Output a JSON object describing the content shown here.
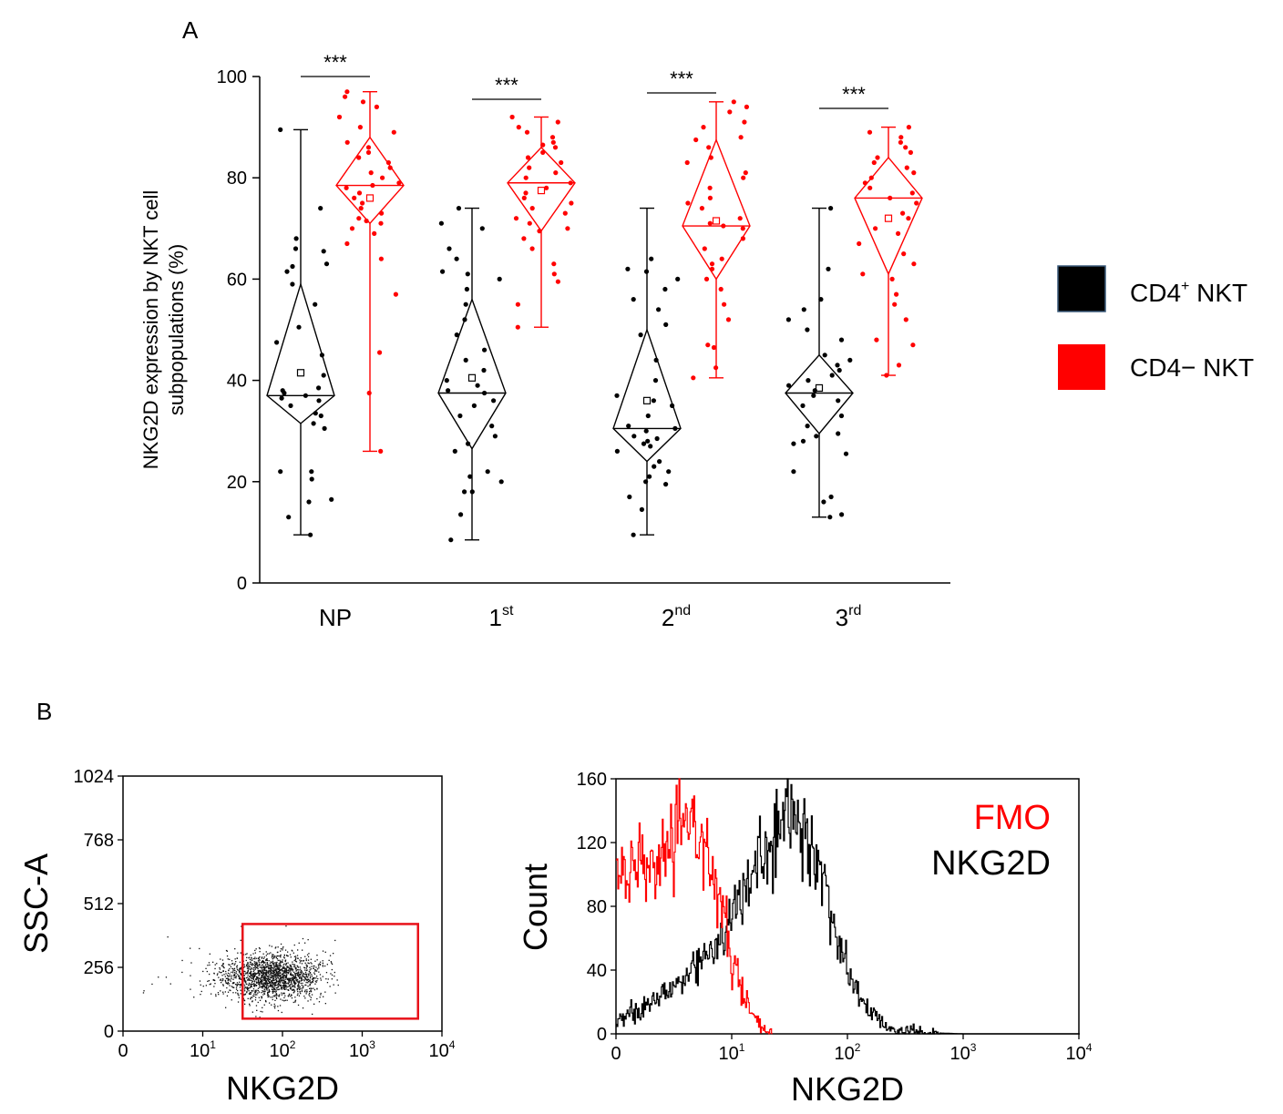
{
  "panel_a": {
    "label": "A",
    "ylabel_line1": "NKG2D expression by NKT cell",
    "ylabel_line2": "subpopulations (%)",
    "legend": [
      {
        "name": "CD4+ NKT",
        "base": "CD4",
        "sup": "+",
        "rest": " NKT",
        "color": "#000000"
      },
      {
        "name": "CD4− NKT",
        "base": "CD4− NKT",
        "sup": "",
        "rest": "",
        "color": "#ff0000"
      }
    ]
  },
  "panel_b": {
    "label": "B",
    "scatter_ylabel": "SSC-A",
    "scatter_xlabel": "NKG2D",
    "hist_ylabel": "Count",
    "hist_xlabel": "NKG2D",
    "hist_legend": [
      {
        "name": "FMO",
        "color": "#ff0000"
      },
      {
        "name": "NKG2D",
        "color": "#000000"
      }
    ]
  },
  "chart_data": [
    {
      "type": "box",
      "panel": "A",
      "ylim": [
        0,
        100
      ],
      "yticks": [
        0,
        20,
        40,
        60,
        80,
        100
      ],
      "categories": [
        {
          "base": "NP",
          "sup": ""
        },
        {
          "base": "1",
          "sup": "st"
        },
        {
          "base": "2",
          "sup": "nd"
        },
        {
          "base": "3",
          "sup": "rd"
        }
      ],
      "significance": [
        "***",
        "***",
        "***",
        "***"
      ],
      "series": [
        {
          "name": "CD4+ NKT",
          "color": "#000000",
          "groups": [
            {
              "min": 9.5,
              "q1": 31.5,
              "median": 37.0,
              "q3": 59.0,
              "max": 89.5,
              "mean": 41.5,
              "points": [
                9.5,
                13,
                16,
                16.5,
                20.5,
                22,
                22,
                30.5,
                31.5,
                33,
                33.5,
                35,
                36,
                36.5,
                37,
                37.5,
                38,
                38.5,
                41,
                45,
                47.5,
                50.5,
                55,
                59,
                61.5,
                62.5,
                63,
                65.5,
                66,
                68,
                74,
                89.5
              ]
            },
            {
              "min": 8.5,
              "q1": 26.5,
              "median": 37.5,
              "q3": 56.0,
              "max": 74.0,
              "mean": 40.5,
              "points": [
                8.5,
                13.5,
                18,
                18,
                20,
                21,
                22,
                26,
                27.5,
                29,
                31,
                33,
                35,
                36,
                37.5,
                38,
                39,
                40,
                42,
                44,
                46,
                49,
                52,
                55,
                58,
                60,
                61,
                61.5,
                64,
                66,
                70,
                71,
                74
              ]
            },
            {
              "min": 9.5,
              "q1": 24.0,
              "median": 30.5,
              "q3": 50.0,
              "max": 74.0,
              "mean": 36.0,
              "points": [
                9.5,
                14.5,
                17,
                19.5,
                20,
                21,
                22,
                23,
                24,
                26,
                27,
                27.5,
                28,
                28.5,
                29,
                30,
                30.5,
                31,
                33,
                35,
                36,
                37,
                40,
                44,
                49,
                51,
                54,
                56,
                58,
                60,
                61.5,
                62,
                64
              ]
            },
            {
              "min": 13.0,
              "q1": 29.5,
              "median": 37.5,
              "q3": 45.0,
              "max": 74.0,
              "mean": 38.5,
              "points": [
                13,
                13.5,
                16,
                17,
                22,
                25.5,
                27.5,
                28,
                29,
                29.5,
                31,
                33,
                35,
                36,
                37,
                38,
                39,
                40,
                41,
                42,
                43,
                44,
                45,
                48,
                50,
                52,
                54,
                56,
                62,
                74
              ]
            }
          ]
        },
        {
          "name": "CD4− NKT",
          "color": "#ff0000",
          "groups": [
            {
              "min": 26.0,
              "q1": 71.0,
              "median": 78.5,
              "q3": 88.0,
              "max": 97.0,
              "mean": 76.0,
              "points": [
                26,
                37.5,
                45.5,
                57,
                64,
                67,
                69,
                70,
                71,
                71.5,
                72,
                73,
                74,
                75,
                76,
                77,
                78,
                78.5,
                79,
                80,
                81,
                82,
                83,
                84,
                85,
                86,
                87,
                89,
                90,
                92,
                94,
                95,
                96,
                97
              ]
            },
            {
              "min": 50.5,
              "q1": 69.5,
              "median": 79.0,
              "q3": 86.0,
              "max": 92.0,
              "mean": 77.5,
              "points": [
                50.5,
                55,
                59.5,
                61,
                63,
                66,
                68,
                69.5,
                70,
                71,
                72,
                73,
                74,
                75,
                76,
                77,
                78,
                79,
                80,
                81,
                82,
                83,
                84,
                85,
                86,
                86.5,
                87,
                88,
                89,
                90,
                91,
                92
              ]
            },
            {
              "min": 40.5,
              "q1": 60.0,
              "median": 70.5,
              "q3": 87.5,
              "max": 95.0,
              "mean": 71.5,
              "points": [
                40.5,
                42.5,
                46.5,
                47,
                52,
                55,
                58,
                60,
                62,
                63,
                64,
                66,
                68,
                70,
                70.5,
                71,
                72,
                74,
                75,
                76,
                78,
                80,
                81,
                83,
                84,
                86,
                87.5,
                88,
                90,
                91,
                93,
                94,
                95
              ]
            },
            {
              "min": 41.0,
              "q1": 61.0,
              "median": 76.0,
              "q3": 84.0,
              "max": 90.0,
              "mean": 72.0,
              "points": [
                41,
                43,
                47,
                48,
                52,
                55,
                57,
                60,
                61,
                63,
                65,
                67,
                69,
                70,
                72,
                73,
                75,
                76,
                77,
                78,
                79,
                80,
                81,
                82,
                83,
                84,
                85,
                86,
                87,
                88,
                89,
                90
              ]
            }
          ]
        }
      ]
    },
    {
      "type": "scatter",
      "panel": "B-left",
      "xscale": "biexponential",
      "xticks": [
        {
          "base": "0",
          "sup": ""
        },
        {
          "base": "10",
          "sup": "1"
        },
        {
          "base": "10",
          "sup": "2"
        },
        {
          "base": "10",
          "sup": "3"
        },
        {
          "base": "10",
          "sup": "4"
        }
      ],
      "ylim": [
        0,
        1024
      ],
      "yticks": [
        0,
        256,
        512,
        768,
        1024
      ],
      "cluster": {
        "x_center_decades": 1.85,
        "x_sd_decades": 0.3,
        "y_center": 220,
        "y_sd": 45,
        "n_points": 1800
      },
      "gate": {
        "x_start_decades": 1.5,
        "x_end_decades": 3.7,
        "y_start": 50,
        "y_end": 430
      }
    },
    {
      "type": "histogram",
      "panel": "B-right",
      "xscale": "log",
      "xticks": [
        {
          "base": "0",
          "sup": ""
        },
        {
          "base": "10",
          "sup": "1"
        },
        {
          "base": "10",
          "sup": "2"
        },
        {
          "base": "10",
          "sup": "3"
        },
        {
          "base": "10",
          "sup": "4"
        }
      ],
      "ylim": [
        0,
        160
      ],
      "yticks": [
        0,
        40,
        80,
        120,
        160
      ],
      "series": [
        {
          "name": "FMO",
          "color": "#ff0000",
          "profile": [
            [
              0,
              95
            ],
            [
              0.2,
              103
            ],
            [
              0.4,
              108
            ],
            [
              0.5,
              118
            ],
            [
              0.6,
              132
            ],
            [
              0.75,
              125
            ],
            [
              0.85,
              96
            ],
            [
              0.95,
              62
            ],
            [
              1.05,
              34
            ],
            [
              1.15,
              14
            ],
            [
              1.25,
              4
            ],
            [
              1.35,
              0
            ]
          ]
        },
        {
          "name": "NKG2D",
          "color": "#000000",
          "profile": [
            [
              0,
              8
            ],
            [
              0.2,
              14
            ],
            [
              0.4,
              24
            ],
            [
              0.6,
              36
            ],
            [
              0.8,
              52
            ],
            [
              1.0,
              72
            ],
            [
              1.2,
              104
            ],
            [
              1.4,
              125
            ],
            [
              1.5,
              140
            ],
            [
              1.6,
              130
            ],
            [
              1.7,
              114
            ],
            [
              1.8,
              92
            ],
            [
              2.0,
              38
            ],
            [
              2.2,
              12
            ],
            [
              2.4,
              3
            ],
            [
              2.6,
              1
            ],
            [
              3.0,
              0
            ],
            [
              4.0,
              0
            ]
          ]
        }
      ]
    }
  ]
}
